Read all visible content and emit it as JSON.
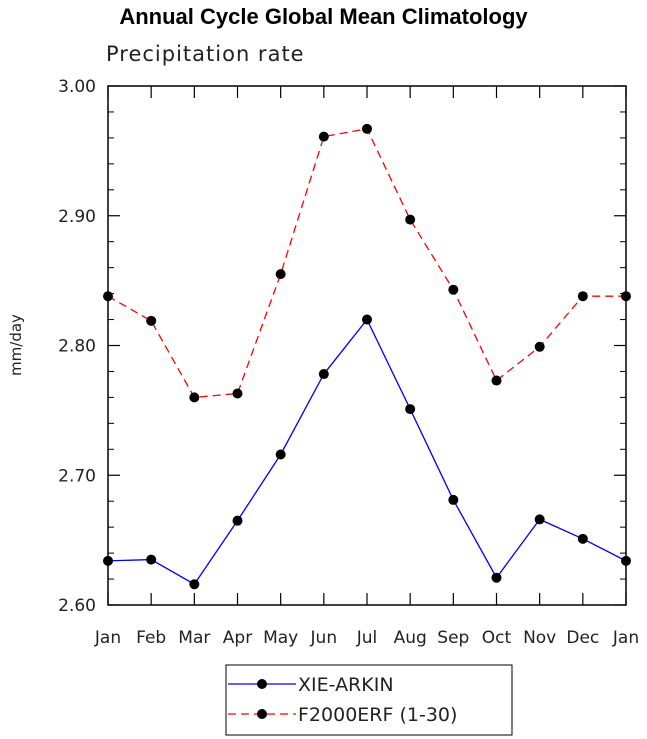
{
  "chart_data": {
    "type": "line",
    "title": "Annual Cycle Global Mean Climatology",
    "subtitle": "Precipitation rate",
    "xlabel": "",
    "ylabel": "mm/day",
    "categories": [
      "Jan",
      "Feb",
      "Mar",
      "Apr",
      "May",
      "Jun",
      "Jul",
      "Aug",
      "Sep",
      "Oct",
      "Nov",
      "Dec",
      "Jan"
    ],
    "ylim": [
      2.6,
      3.0
    ],
    "yticks": [
      "2.60",
      "2.70",
      "2.80",
      "2.90",
      "3.00"
    ],
    "grid": false,
    "legend_position": "bottom",
    "series": [
      {
        "name": "XIE-ARKIN",
        "color": "#0000ff",
        "dash": "solid",
        "values": [
          2.634,
          2.635,
          2.616,
          2.665,
          2.716,
          2.778,
          2.82,
          2.751,
          2.681,
          2.621,
          2.666,
          2.651,
          2.634
        ]
      },
      {
        "name": "F2000ERF (1-30)",
        "color": "#ff0000",
        "dash": "dashed",
        "values": [
          2.838,
          2.819,
          2.76,
          2.763,
          2.855,
          2.961,
          2.967,
          2.897,
          2.843,
          2.773,
          2.799,
          2.838,
          2.838
        ]
      }
    ]
  }
}
